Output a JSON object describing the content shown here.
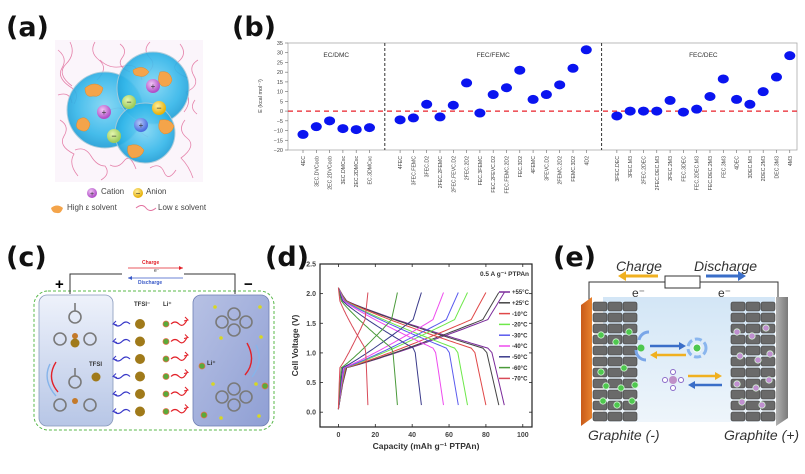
{
  "panels": {
    "a": {
      "label": "(a)",
      "legend": {
        "cation": "Cation",
        "anion": "Anion",
        "high_eps": "High ε solvent",
        "low_eps": "Low ε solvent"
      }
    },
    "b": {
      "label": "(b)"
    },
    "c": {
      "label": "(c)",
      "plus": "+",
      "minus": "−",
      "charge": "Charge",
      "electron": "e⁻",
      "discharge": "Discharge",
      "tfsi_header": "TFSI⁻",
      "li_header": "Li⁺",
      "tfsi_label": "TFSI",
      "li_label": "Li⁺"
    },
    "d": {
      "label": "(d)"
    },
    "e": {
      "label": "(e)",
      "charge": "Charge",
      "discharge": "Discharge",
      "e_left": "e⁻",
      "e_right": "e⁻",
      "graphite_neg": "Graphite (-)",
      "graphite_pos": "Graphite (+)"
    }
  },
  "chart_data": [
    {
      "panel": "b",
      "type": "scatter",
      "title": "",
      "xlabel": "",
      "ylabel": "E (kcal mol⁻¹)",
      "ylim": [
        -20,
        35
      ],
      "yticks": [
        -20,
        -15,
        -10,
        -5,
        0,
        5,
        10,
        15,
        20,
        25,
        30,
        35
      ],
      "reference_line": {
        "y": 0,
        "color": "#e8202a",
        "style": "dashed"
      },
      "marker_color": "#0a14f0",
      "groups": [
        {
          "name": "EC/DMC",
          "categories": [
            "4EC",
            "3EC.DVCocb",
            "2EC.2DVCocb",
            "3EC.DMCxc",
            "2EC.2DMCxc",
            "EC.3DMCxc"
          ],
          "values": [
            -12,
            -8,
            -5,
            -9,
            -9.5,
            -8.5
          ]
        },
        {
          "name": "FEC/FEMC",
          "categories": [
            "4FEC",
            "3FEC.FEMC",
            "3FEC.D2",
            "2FEC.2FEMC",
            "2FEC.FEVC.D2",
            "2FEC.2D2",
            "FEC.3FEMC",
            "FEC.2FEVC.D2",
            "FEC.FEMC.2D2",
            "FEC.3D2",
            "4FEMC",
            "3FEVC.D2",
            "2FEMC.2D2",
            "FEMC.3D2",
            "4D2"
          ],
          "values": [
            -4.5,
            -3.5,
            3.5,
            -3,
            3,
            14.5,
            -1,
            8.5,
            12,
            21,
            6,
            8.5,
            13.5,
            22,
            31.5
          ]
        },
        {
          "name": "FEC/DEC",
          "categories": [
            "3FEC.DEC",
            "3FEC.M3",
            "2FEC.2DEC",
            "2FEC.DEC.M3",
            "2FEC.2M3",
            "FEC.3DEC",
            "FEC.2DEC.M3",
            "FEC.DEC.2M3",
            "FEC.3M3",
            "4DEC",
            "3DEC.M3",
            "2DEC.2M3",
            "DEC.3M3",
            "4M3"
          ],
          "values": [
            -2.5,
            0,
            0,
            0,
            5.5,
            -0.5,
            1,
            7.5,
            16.5,
            6,
            3.5,
            10,
            17.5,
            28.5
          ]
        }
      ]
    },
    {
      "panel": "d",
      "type": "line",
      "title": "",
      "annotation": "0.5 A g⁻¹ PTPAn",
      "xlabel": "Capacity (mAh g⁻¹ PTPAn)",
      "ylabel": "Cell Voltage (V)",
      "xlim": [
        -10,
        105
      ],
      "ylim": [
        -0.25,
        2.5
      ],
      "xticks": [
        0,
        20,
        40,
        60,
        80,
        100
      ],
      "yticks": [
        0.0,
        0.5,
        1.0,
        1.5,
        2.0,
        2.5
      ],
      "legend_position": "right",
      "voltage_window": [
        0.05,
        2.1
      ],
      "series": [
        {
          "name": "+55°C",
          "color": "#7a2a9a",
          "capacity": 90
        },
        {
          "name": "+25°C",
          "color": "#444444",
          "capacity": 87
        },
        {
          "name": "-10°C",
          "color": "#e04848",
          "capacity": 80
        },
        {
          "name": "-20°C",
          "color": "#6ee84a",
          "capacity": 70
        },
        {
          "name": "-30°C",
          "color": "#5a5aee",
          "capacity": 65
        },
        {
          "name": "-40°C",
          "color": "#ee4aee",
          "capacity": 57
        },
        {
          "name": "-50°C",
          "color": "#3a3a8a",
          "capacity": 45
        },
        {
          "name": "-60°C",
          "color": "#4a9a3a",
          "capacity": 32
        },
        {
          "name": "-70°C",
          "color": "#d84a58",
          "capacity": 16
        }
      ]
    }
  ]
}
